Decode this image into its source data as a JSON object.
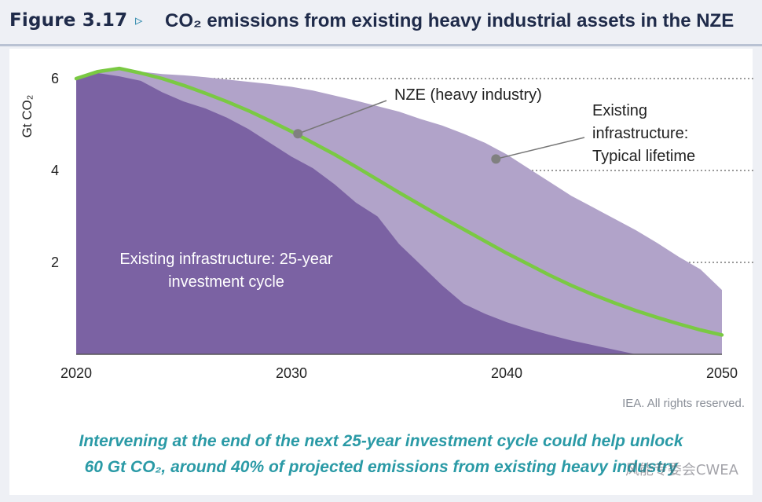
{
  "header": {
    "figure_label": "Figure 3.17",
    "arrow": "▹",
    "title": "CO₂ emissions from existing heavy industrial assets in the NZE"
  },
  "colors": {
    "dark_area": "#7b62a3",
    "light_area": "#b1a3c9",
    "nze_line": "#7ac943",
    "title_text": "#1f2b4a",
    "takeaway_text": "#2a9aa6"
  },
  "chart_data": {
    "type": "area",
    "ylabel": "Gt CO₂",
    "xlim": [
      2020,
      2050
    ],
    "ylim": [
      0,
      6.5
    ],
    "x_ticks": [
      "2020",
      "2030",
      "2040",
      "2050"
    ],
    "y_ticks": [
      "2",
      "4",
      "6"
    ],
    "y_tick_values": [
      2,
      4,
      6
    ],
    "gridlines": "dotted at y ticks",
    "series": [
      {
        "name": "Existing infrastructure: Typical lifetime",
        "label": [
          "Existing",
          "infrastructure:",
          "Typical lifetime"
        ],
        "x": [
          2020,
          2021,
          2022,
          2023,
          2024,
          2025,
          2026,
          2027,
          2028,
          2029,
          2030,
          2031,
          2032,
          2033,
          2034,
          2035,
          2036,
          2037,
          2038,
          2039,
          2040,
          2041,
          2042,
          2043,
          2044,
          2045,
          2046,
          2047,
          2048,
          2049,
          2050
        ],
        "values": [
          6.0,
          6.15,
          6.22,
          6.15,
          6.1,
          6.07,
          6.03,
          5.98,
          5.93,
          5.88,
          5.82,
          5.74,
          5.63,
          5.52,
          5.4,
          5.28,
          5.12,
          4.98,
          4.8,
          4.6,
          4.35,
          4.05,
          3.75,
          3.45,
          3.2,
          2.95,
          2.7,
          2.42,
          2.12,
          1.85,
          1.4
        ]
      },
      {
        "name": "Existing infrastructure: 25-year investment cycle",
        "label": [
          "Existing infrastructure: 25-year",
          "investment cycle"
        ],
        "x": [
          2020,
          2021,
          2022,
          2023,
          2024,
          2025,
          2026,
          2027,
          2028,
          2029,
          2030,
          2031,
          2032,
          2033,
          2034,
          2035,
          2036,
          2037,
          2038,
          2039,
          2040,
          2041,
          2042,
          2043,
          2044,
          2045,
          2046
        ],
        "values": [
          6.0,
          6.12,
          6.05,
          5.95,
          5.7,
          5.5,
          5.35,
          5.15,
          4.9,
          4.6,
          4.3,
          4.05,
          3.7,
          3.3,
          3.0,
          2.4,
          1.95,
          1.5,
          1.1,
          0.88,
          0.7,
          0.55,
          0.42,
          0.3,
          0.2,
          0.1,
          0.0
        ]
      },
      {
        "name": "NZE (heavy industry)",
        "label": [
          "NZE (heavy industry)"
        ],
        "x": [
          2020,
          2021,
          2022,
          2023,
          2024,
          2025,
          2026,
          2027,
          2028,
          2029,
          2030,
          2031,
          2032,
          2033,
          2034,
          2035,
          2036,
          2037,
          2038,
          2039,
          2040,
          2041,
          2042,
          2043,
          2044,
          2045,
          2046,
          2047,
          2048,
          2049,
          2050
        ],
        "values": [
          6.0,
          6.15,
          6.22,
          6.12,
          6.0,
          5.85,
          5.68,
          5.5,
          5.3,
          5.08,
          4.85,
          4.6,
          4.35,
          4.08,
          3.8,
          3.52,
          3.25,
          2.98,
          2.72,
          2.46,
          2.2,
          1.96,
          1.72,
          1.5,
          1.3,
          1.12,
          0.95,
          0.8,
          0.66,
          0.53,
          0.42
        ]
      }
    ]
  },
  "credit": "IEA. All rights reserved.",
  "takeaway": [
    "Intervening at the end of the next 25-year investment cycle could help unlock",
    "60 Gt CO₂, around 40% of projected emissions from existing heavy industry"
  ],
  "watermark": "风能专委会CWEA"
}
